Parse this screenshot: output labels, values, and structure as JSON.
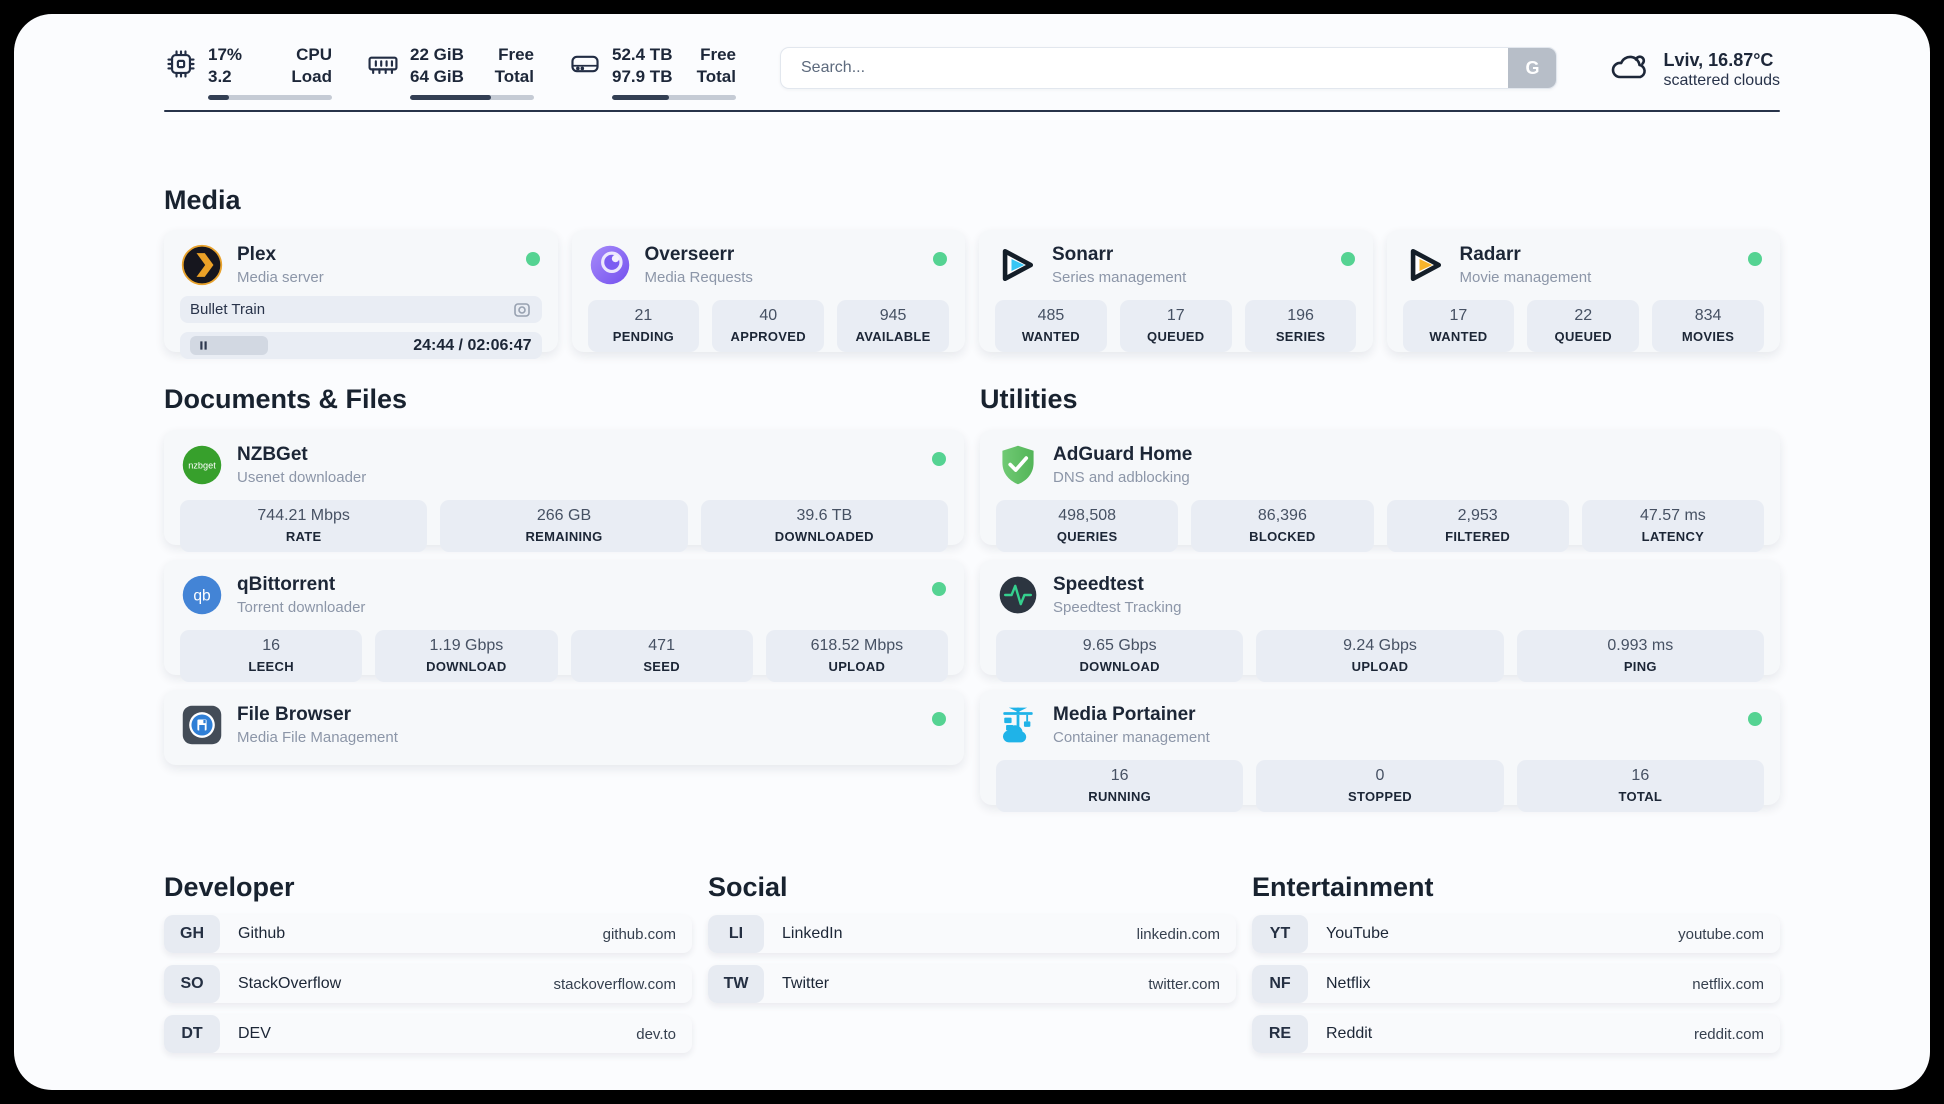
{
  "header": {
    "system_stats": [
      {
        "icon": "cpu",
        "value_top": "17%",
        "value_bottom": "3.2",
        "label_top": "CPU",
        "label_bottom": "Load",
        "progress_pct": 17
      },
      {
        "icon": "memory",
        "value_top": "22 GiB",
        "value_bottom": "64 GiB",
        "label_top": "Free",
        "label_bottom": "Total",
        "progress_pct": 65
      },
      {
        "icon": "disk",
        "value_top": "52.4 TB",
        "value_bottom": "97.9 TB",
        "label_top": "Free",
        "label_bottom": "Total",
        "progress_pct": 46
      }
    ],
    "search": {
      "placeholder": "Search...",
      "button_label": "G"
    },
    "weather": {
      "location": "Lviv, 16.87°C",
      "condition": "scattered clouds"
    }
  },
  "colors": {
    "status_online": "#55d392"
  },
  "media": {
    "title": "Media",
    "plex": {
      "name": "Plex",
      "subtitle": "Media server",
      "online": true,
      "now_playing": "Bullet Train",
      "time": "24:44 / 02:06:47"
    },
    "overseerr": {
      "name": "Overseerr",
      "subtitle": "Media Requests",
      "online": true,
      "stats": [
        {
          "value": "21",
          "label": "PENDING"
        },
        {
          "value": "40",
          "label": "APPROVED"
        },
        {
          "value": "945",
          "label": "AVAILABLE"
        }
      ]
    },
    "sonarr": {
      "name": "Sonarr",
      "subtitle": "Series management",
      "online": true,
      "stats": [
        {
          "value": "485",
          "label": "WANTED"
        },
        {
          "value": "17",
          "label": "QUEUED"
        },
        {
          "value": "196",
          "label": "SERIES"
        }
      ]
    },
    "radarr": {
      "name": "Radarr",
      "subtitle": "Movie management",
      "online": true,
      "stats": [
        {
          "value": "17",
          "label": "WANTED"
        },
        {
          "value": "22",
          "label": "QUEUED"
        },
        {
          "value": "834",
          "label": "MOVIES"
        }
      ]
    }
  },
  "documents": {
    "title": "Documents & Files",
    "nzbget": {
      "name": "NZBGet",
      "subtitle": "Usenet downloader",
      "online": true,
      "stats": [
        {
          "value": "744.21 Mbps",
          "label": "RATE"
        },
        {
          "value": "266 GB",
          "label": "REMAINING"
        },
        {
          "value": "39.6 TB",
          "label": "DOWNLOADED"
        }
      ]
    },
    "qbittorrent": {
      "name": "qBittorrent",
      "subtitle": "Torrent downloader",
      "online": true,
      "stats": [
        {
          "value": "16",
          "label": "LEECH"
        },
        {
          "value": "1.19 Gbps",
          "label": "DOWNLOAD"
        },
        {
          "value": "471",
          "label": "SEED"
        },
        {
          "value": "618.52 Mbps",
          "label": "UPLOAD"
        }
      ]
    },
    "filebrowser": {
      "name": "File Browser",
      "subtitle": "Media File Management",
      "online": true
    }
  },
  "utilities": {
    "title": "Utilities",
    "adguard": {
      "name": "AdGuard Home",
      "subtitle": "DNS and adblocking",
      "online": false,
      "stats": [
        {
          "value": "498,508",
          "label": "QUERIES"
        },
        {
          "value": "86,396",
          "label": "BLOCKED"
        },
        {
          "value": "2,953",
          "label": "FILTERED"
        },
        {
          "value": "47.57 ms",
          "label": "LATENCY"
        }
      ]
    },
    "speedtest": {
      "name": "Speedtest",
      "subtitle": "Speedtest Tracking",
      "online": false,
      "stats": [
        {
          "value": "9.65 Gbps",
          "label": "DOWNLOAD"
        },
        {
          "value": "9.24 Gbps",
          "label": "UPLOAD"
        },
        {
          "value": "0.993 ms",
          "label": "PING"
        }
      ]
    },
    "portainer": {
      "name": "Media Portainer",
      "subtitle": "Container management",
      "online": true,
      "stats": [
        {
          "value": "16",
          "label": "RUNNING"
        },
        {
          "value": "0",
          "label": "STOPPED"
        },
        {
          "value": "16",
          "label": "TOTAL"
        }
      ]
    }
  },
  "bookmarks": [
    {
      "title": "Developer",
      "links": [
        {
          "abbr": "GH",
          "name": "Github",
          "url": "github.com"
        },
        {
          "abbr": "SO",
          "name": "StackOverflow",
          "url": "stackoverflow.com"
        },
        {
          "abbr": "DT",
          "name": "DEV",
          "url": "dev.to"
        }
      ]
    },
    {
      "title": "Social",
      "links": [
        {
          "abbr": "LI",
          "name": "LinkedIn",
          "url": "linkedin.com"
        },
        {
          "abbr": "TW",
          "name": "Twitter",
          "url": "twitter.com"
        }
      ]
    },
    {
      "title": "Entertainment",
      "links": [
        {
          "abbr": "YT",
          "name": "YouTube",
          "url": "youtube.com"
        },
        {
          "abbr": "NF",
          "name": "Netflix",
          "url": "netflix.com"
        },
        {
          "abbr": "RE",
          "name": "Reddit",
          "url": "reddit.com"
        }
      ]
    }
  ]
}
